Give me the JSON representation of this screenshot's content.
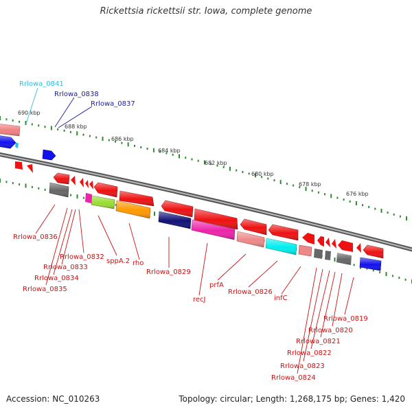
{
  "title": "Rickettsia rickettsii str. Iowa, complete genome",
  "footer": {
    "accession": "Accession: NC_010263",
    "topology": "Topology: circular; Length: 1,268,175 bp; Genes: 1,420"
  },
  "scale": {
    "ticks": [
      {
        "label": "690 kbp"
      },
      {
        "label": "688 kbp"
      },
      {
        "label": "686 kbp"
      },
      {
        "label": "684 kbp"
      },
      {
        "label": "682 kbp"
      },
      {
        "label": "680 kbp"
      },
      {
        "label": "678 kbp"
      },
      {
        "label": "676 kbp"
      }
    ]
  },
  "gene_labels": {
    "upper": [
      {
        "text": "Rrlowa_0841",
        "color": "#33bbdd"
      },
      {
        "text": "Rrlowa_0838",
        "color": "#1a1aa8"
      },
      {
        "text": "Rrlowa_0837",
        "color": "#1a1aa8"
      }
    ],
    "lower": [
      {
        "text": "Rrlowa_0836"
      },
      {
        "text": "Rrlowa_0832"
      },
      {
        "text": "Rrlowa_0833"
      },
      {
        "text": "Rrlowa_0834"
      },
      {
        "text": "Rrlowa_0835"
      },
      {
        "text": "sppA.2"
      },
      {
        "text": "rho"
      },
      {
        "text": "Rrlowa_0829"
      },
      {
        "text": "recJ"
      },
      {
        "text": "prfA"
      },
      {
        "text": "Rrlowa_0826"
      },
      {
        "text": "infC"
      },
      {
        "text": "Rrlowa_0819"
      },
      {
        "text": "Rrlowa_0820"
      },
      {
        "text": "Rrlowa_0821"
      },
      {
        "text": "Rrlowa_0822"
      },
      {
        "text": "Rrlowa_0823"
      },
      {
        "text": "Rrlowa_0824"
      }
    ],
    "lower_color": "#cc1111"
  }
}
